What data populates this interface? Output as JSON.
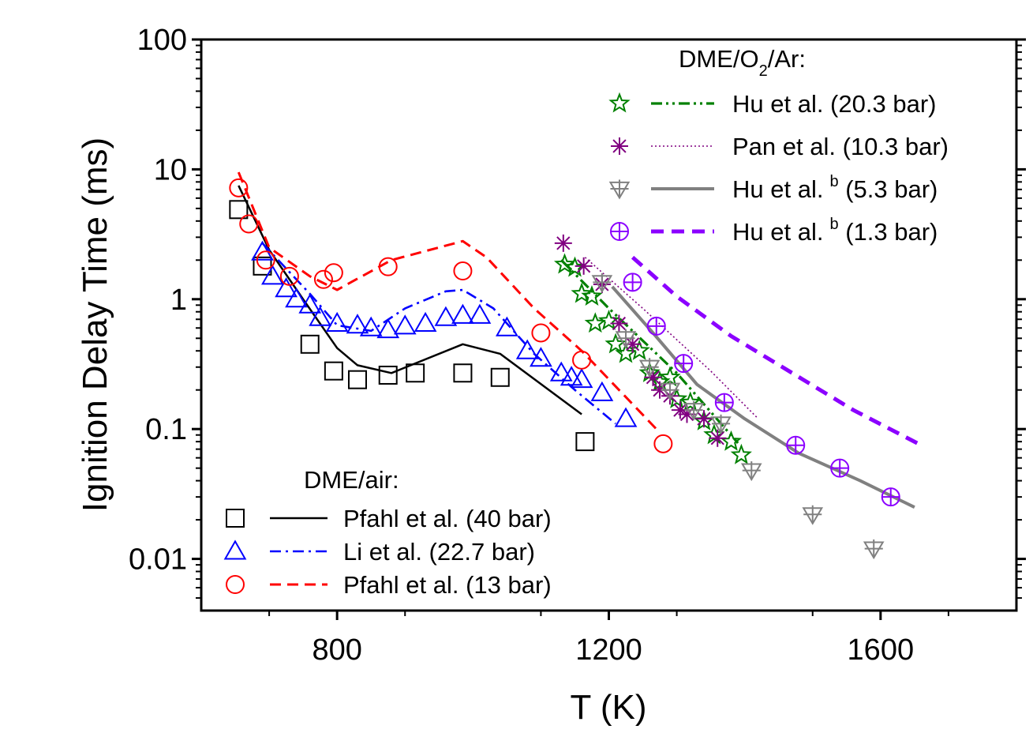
{
  "chart_data": {
    "type": "scatter",
    "title": "",
    "xlabel": "T (K)",
    "ylabel": "Ignition Delay Time (ms)",
    "xlim": [
      600,
      1800
    ],
    "ylim": [
      0.004,
      100
    ],
    "yscale": "log",
    "x_ticks": [
      800,
      1200,
      1600
    ],
    "x_tick_labels": [
      "800",
      "1200",
      "1600"
    ],
    "y_ticks": [
      0.01,
      0.1,
      1,
      10,
      100
    ],
    "y_tick_labels": [
      "0.01",
      "0.1",
      "1",
      "10",
      "100"
    ],
    "grid": false,
    "legend_groups": [
      {
        "heading": "DME/O",
        "heading_sub": "2",
        "heading_tail": "/Ar:",
        "placement": "top-right"
      },
      {
        "heading": "DME/air:",
        "placement": "bottom-left"
      }
    ],
    "series": [
      {
        "name": "Hu et al. (20.3 bar)",
        "group": 0,
        "label_sup": "",
        "color": "#008000",
        "marker": "star",
        "line": "dashdotdot",
        "points": [
          [
            1135,
            1.85
          ],
          [
            1150,
            1.75
          ],
          [
            1160,
            1.1
          ],
          [
            1175,
            1.05
          ],
          [
            1180,
            0.65
          ],
          [
            1200,
            0.68
          ],
          [
            1210,
            0.45
          ],
          [
            1225,
            0.38
          ],
          [
            1245,
            0.4
          ],
          [
            1260,
            0.27
          ],
          [
            1275,
            0.23
          ],
          [
            1290,
            0.25
          ],
          [
            1300,
            0.17
          ],
          [
            1320,
            0.16
          ],
          [
            1340,
            0.115
          ],
          [
            1355,
            0.09
          ],
          [
            1380,
            0.08
          ],
          [
            1395,
            0.063
          ]
        ],
        "fit": [
          [
            1130,
            2.0
          ],
          [
            1200,
            0.85
          ],
          [
            1300,
            0.27
          ],
          [
            1390,
            0.078
          ]
        ]
      },
      {
        "name": "Pan et al. (10.3 bar)",
        "group": 0,
        "label_sup": "",
        "color": "#800080",
        "marker": "asterisk",
        "line": "dotted",
        "points": [
          [
            1133,
            2.7
          ],
          [
            1163,
            1.8
          ],
          [
            1190,
            1.3
          ],
          [
            1215,
            0.65
          ],
          [
            1235,
            0.45
          ],
          [
            1265,
            0.25
          ],
          [
            1275,
            0.2
          ],
          [
            1290,
            0.18
          ],
          [
            1305,
            0.14
          ],
          [
            1315,
            0.13
          ],
          [
            1340,
            0.12
          ],
          [
            1360,
            0.085
          ]
        ],
        "fit": [
          [
            1165,
            2.1
          ],
          [
            1250,
            0.85
          ],
          [
            1350,
            0.28
          ],
          [
            1420,
            0.12
          ]
        ]
      },
      {
        "name": "Hu et al.",
        "group": 0,
        "label_sup": "b",
        "label_tail": " (5.3 bar)",
        "color": "#808080",
        "marker": "tri_down_plus",
        "line": "solid",
        "points": [
          [
            1190,
            1.35
          ],
          [
            1225,
            0.5
          ],
          [
            1260,
            0.3
          ],
          [
            1290,
            0.2
          ],
          [
            1325,
            0.14
          ],
          [
            1365,
            0.11
          ],
          [
            1410,
            0.048
          ],
          [
            1500,
            0.022
          ],
          [
            1590,
            0.012
          ]
        ],
        "fit": [
          [
            1205,
            1.25
          ],
          [
            1265,
            0.55
          ],
          [
            1330,
            0.22
          ],
          [
            1400,
            0.12
          ],
          [
            1480,
            0.065
          ],
          [
            1570,
            0.04
          ],
          [
            1650,
            0.025
          ]
        ]
      },
      {
        "name": "Hu et al.",
        "group": 0,
        "label_sup": "b",
        "label_tail": " (1.3 bar)",
        "color": "#8b00ff",
        "marker": "circle_plus",
        "line": "dashed",
        "points": [
          [
            1235,
            1.35
          ],
          [
            1270,
            0.62
          ],
          [
            1310,
            0.32
          ],
          [
            1370,
            0.16
          ],
          [
            1475,
            0.075
          ],
          [
            1540,
            0.05
          ],
          [
            1615,
            0.03
          ]
        ],
        "fit": [
          [
            1235,
            2.1
          ],
          [
            1300,
            1.05
          ],
          [
            1380,
            0.52
          ],
          [
            1470,
            0.27
          ],
          [
            1560,
            0.14
          ],
          [
            1660,
            0.075
          ]
        ]
      },
      {
        "name": "Pfahl et al. (40 bar)",
        "group": 1,
        "label_sup": "",
        "color": "#000000",
        "marker": "square",
        "line": "solid",
        "points": [
          [
            655,
            4.9
          ],
          [
            690,
            1.8
          ],
          [
            760,
            0.45
          ],
          [
            795,
            0.28
          ],
          [
            830,
            0.24
          ],
          [
            875,
            0.26
          ],
          [
            915,
            0.27
          ],
          [
            985,
            0.27
          ],
          [
            1040,
            0.25
          ],
          [
            1165,
            0.08
          ]
        ],
        "fit": [
          [
            655,
            7.5
          ],
          [
            700,
            2.4
          ],
          [
            750,
            1.0
          ],
          [
            800,
            0.42
          ],
          [
            830,
            0.31
          ],
          [
            880,
            0.27
          ],
          [
            985,
            0.45
          ],
          [
            1040,
            0.38
          ],
          [
            1160,
            0.13
          ]
        ]
      },
      {
        "name": "Li et al. (22.7 bar)",
        "group": 1,
        "label_sup": "",
        "color": "#0000ff",
        "marker": "triangle_up",
        "line": "dashdot",
        "points": [
          [
            690,
            2.3
          ],
          [
            705,
            1.5
          ],
          [
            725,
            1.2
          ],
          [
            740,
            1.0
          ],
          [
            760,
            0.9
          ],
          [
            775,
            0.72
          ],
          [
            800,
            0.65
          ],
          [
            830,
            0.63
          ],
          [
            850,
            0.6
          ],
          [
            875,
            0.58
          ],
          [
            900,
            0.62
          ],
          [
            930,
            0.65
          ],
          [
            960,
            0.72
          ],
          [
            985,
            0.75
          ],
          [
            1010,
            0.75
          ],
          [
            1050,
            0.6
          ],
          [
            1080,
            0.4
          ],
          [
            1100,
            0.35
          ],
          [
            1130,
            0.27
          ],
          [
            1145,
            0.25
          ],
          [
            1160,
            0.24
          ],
          [
            1190,
            0.19
          ],
          [
            1225,
            0.12
          ]
        ],
        "fit": [
          [
            690,
            2.7
          ],
          [
            760,
            1.1
          ],
          [
            800,
            0.63
          ],
          [
            850,
            0.57
          ],
          [
            900,
            0.85
          ],
          [
            960,
            1.15
          ],
          [
            985,
            1.18
          ],
          [
            1030,
            0.85
          ],
          [
            1090,
            0.38
          ],
          [
            1150,
            0.2
          ],
          [
            1210,
            0.11
          ]
        ]
      },
      {
        "name": "Pfahl et al. (13 bar)",
        "group": 1,
        "label_sup": "",
        "color": "#ff0000",
        "marker": "circle",
        "line": "dashed",
        "points": [
          [
            655,
            7.2
          ],
          [
            670,
            3.8
          ],
          [
            695,
            2.0
          ],
          [
            730,
            1.5
          ],
          [
            780,
            1.42
          ],
          [
            795,
            1.6
          ],
          [
            875,
            1.78
          ],
          [
            985,
            1.65
          ],
          [
            1100,
            0.55
          ],
          [
            1160,
            0.34
          ],
          [
            1280,
            0.077
          ]
        ],
        "fit": [
          [
            655,
            9.5
          ],
          [
            700,
            2.5
          ],
          [
            760,
            1.5
          ],
          [
            800,
            1.18
          ],
          [
            880,
            2.0
          ],
          [
            985,
            2.8
          ],
          [
            1020,
            2.1
          ],
          [
            1090,
            0.85
          ],
          [
            1160,
            0.4
          ],
          [
            1270,
            0.1
          ]
        ]
      }
    ]
  }
}
